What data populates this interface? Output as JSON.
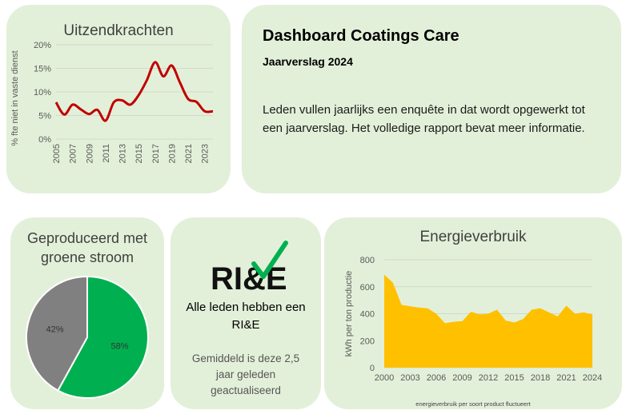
{
  "header": {
    "title": "Dashboard Coatings Care",
    "subtitle": "Jaarverslag 2024",
    "description": "Leden vullen jaarlijks een enquête in dat wordt opgewerkt tot een jaarverslag. Het volledige rapport bevat meer informatie."
  },
  "rie": {
    "logo_text": "RI&E",
    "main_text": "Alle leden hebben een RI&E",
    "sub_text": "Gemiddeld is deze 2,5 jaar geleden geactualiseerd"
  },
  "colors": {
    "card_bg": "#e3f0d9",
    "line": "#c00000",
    "area": "#ffc000",
    "pie_green": "#00b050",
    "pie_grey": "#808080",
    "check": "#00b050"
  },
  "chart_data": [
    {
      "id": "uitzend",
      "type": "line",
      "title": "Uitzendkrachten",
      "ylabel": "% fte niet in vaste dienst",
      "ylim": [
        0,
        20
      ],
      "yticks": [
        "0%",
        "5%",
        "10%",
        "15%",
        "20%"
      ],
      "x": [
        2005,
        2006,
        2007,
        2008,
        2009,
        2010,
        2011,
        2012,
        2013,
        2014,
        2015,
        2016,
        2017,
        2018,
        2019,
        2020,
        2021,
        2022,
        2023,
        2024
      ],
      "xticks": [
        "2005",
        "2007",
        "2009",
        "2011",
        "2013",
        "2015",
        "2017",
        "2019",
        "2021",
        "2023"
      ],
      "values": [
        7.8,
        5.2,
        7.3,
        6.3,
        5.3,
        6.2,
        3.9,
        7.8,
        8.2,
        7.3,
        9.3,
        12.5,
        16.3,
        13.3,
        15.6,
        12.0,
        8.5,
        7.9,
        5.9,
        5.9
      ]
    },
    {
      "id": "groen",
      "type": "pie",
      "title": "Geproduceerd met groene stroom",
      "slices": [
        {
          "label": "58%",
          "value": 58
        },
        {
          "label": "42%",
          "value": 42
        }
      ]
    },
    {
      "id": "energie",
      "type": "area",
      "title": "Energieverbruik",
      "ylabel": "kWh per ton productie",
      "ylim": [
        0,
        800
      ],
      "yticks": [
        "0",
        "200",
        "400",
        "600",
        "800"
      ],
      "x": [
        2000,
        2001,
        2002,
        2003,
        2004,
        2005,
        2006,
        2007,
        2008,
        2009,
        2010,
        2011,
        2012,
        2013,
        2014,
        2015,
        2016,
        2017,
        2018,
        2019,
        2020,
        2021,
        2022,
        2023,
        2024
      ],
      "xticks": [
        "2000",
        "2003",
        "2006",
        "2009",
        "2012",
        "2015",
        "2018",
        "2021",
        "2024"
      ],
      "values": [
        690,
        630,
        465,
        455,
        445,
        440,
        400,
        330,
        340,
        345,
        415,
        395,
        400,
        430,
        350,
        335,
        360,
        430,
        440,
        410,
        380,
        460,
        400,
        410,
        395
      ],
      "footnote": "energieverbruik per soort product fluctueert"
    }
  ]
}
